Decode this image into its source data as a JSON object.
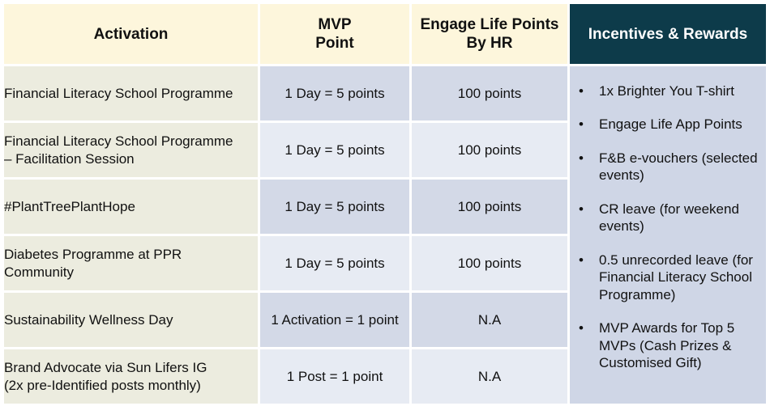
{
  "headers": {
    "activation": "Activation",
    "mvp_line1": "MVP",
    "mvp_line2": "Point",
    "engage_line1": "Engage Life Points",
    "engage_line2": "By HR",
    "incentives": "Incentives & Rewards"
  },
  "rows": [
    {
      "activation": [
        "Financial Literacy School Programme"
      ],
      "mvp": "1 Day = 5 points",
      "points": "100 points"
    },
    {
      "activation": [
        "Financial Literacy School Programme",
        "– Facilitation Session"
      ],
      "mvp": "1 Day = 5 points",
      "points": "100 points"
    },
    {
      "activation": [
        "#PlantTreePlantHope"
      ],
      "mvp": "1 Day = 5 points",
      "points": "100 points"
    },
    {
      "activation": [
        "Diabetes Programme at PPR",
        "Community"
      ],
      "mvp": "1 Day = 5 points",
      "points": "100 points"
    },
    {
      "activation": [
        "Sustainability Wellness Day"
      ],
      "mvp": "1 Activation = 1 point",
      "points": "N.A"
    },
    {
      "activation": [
        "Brand Advocate via Sun Lifers IG",
        "(2x pre-Identified posts monthly)"
      ],
      "mvp": "1 Post = 1 point",
      "points": "N.A"
    }
  ],
  "bullet": "•",
  "rewards": [
    [
      "1x Brighter You T-shirt"
    ],
    [
      "Engage Life App Points"
    ],
    [
      "F&B e-vouchers (selected",
      "events)"
    ],
    [
      "CR leave (for weekend",
      "events)"
    ],
    [
      "0.5 unrecorded leave (for",
      "Financial Literacy School",
      "Programme)"
    ],
    [
      "MVP Awards for Top 5",
      "MVPs (Cash Prizes &",
      "Customised Gift)"
    ]
  ],
  "colors": {
    "header_bg": "#fdf6dc",
    "incentive_header_bg": "#0d3b4a",
    "activation_bg": "#ececdf",
    "cell_dark": "#d3d9e7",
    "cell_light": "#e7ebf3",
    "incentive_bg": "#cfd6e6"
  }
}
